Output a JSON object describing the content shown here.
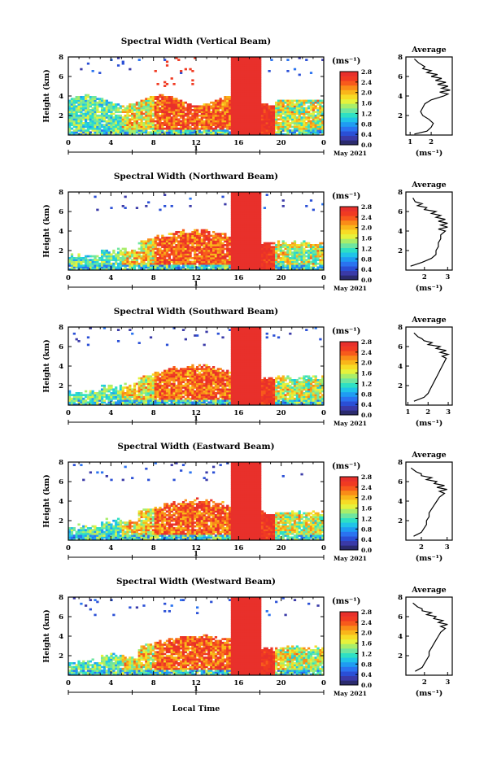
{
  "chart_data": {
    "type": "heatmap",
    "xlabel": "Local Time",
    "date_label": "May 2021",
    "colorbar": {
      "title": "(ms⁻¹)",
      "ticks": [
        "2.8",
        "2.4",
        "2.0",
        "1.6",
        "1.2",
        "0.8",
        "0.4",
        "0.0"
      ],
      "colors": [
        "#2b2b6e",
        "#3a3aa8",
        "#2a4fd6",
        "#2a73f0",
        "#1f9cf2",
        "#20c4e8",
        "#2ee0c4",
        "#6ee6a0",
        "#a8ee6a",
        "#e6f23c",
        "#f7dc25",
        "#f9b61a",
        "#f98c18",
        "#f75a1c",
        "#f03a22",
        "#e8302b"
      ],
      "range": [
        0,
        2.8
      ]
    },
    "x_ticks": [
      "0",
      "4",
      "8",
      "12",
      "16",
      "20",
      "0"
    ],
    "x_range": [
      0,
      24
    ],
    "day_marker": "1",
    "y_range": [
      0,
      8
    ],
    "panels": [
      {
        "title": "Spectral Width (Vertical Beam)",
        "ylabel": "Height (km)",
        "y_ticks": [
          "2",
          "4",
          "6",
          "8"
        ],
        "avg_title": "Average",
        "avg_unit": "(ms⁻¹)",
        "avg_x_ticks": [
          "1",
          "2"
        ],
        "avg_x_range": [
          0.8,
          3.0
        ],
        "avg_profile": {
          "height": [
            0.1,
            0.4,
            0.8,
            1.2,
            1.6,
            2.0,
            2.4,
            2.8,
            3.2,
            3.6,
            4.0,
            4.2,
            4.4,
            4.6,
            4.8,
            5.0,
            5.2,
            5.4,
            5.6,
            5.8,
            6.0,
            6.2,
            6.4,
            6.6,
            6.8,
            7.0,
            7.4,
            7.8
          ],
          "width": [
            1.2,
            1.8,
            2.0,
            2.1,
            1.9,
            1.6,
            1.5,
            1.6,
            1.7,
            2.0,
            2.6,
            2.8,
            2.4,
            2.9,
            2.5,
            2.8,
            2.3,
            2.7,
            2.2,
            2.5,
            2.0,
            2.3,
            1.8,
            2.0,
            1.6,
            1.7,
            1.4,
            1.2
          ]
        }
      },
      {
        "title": "Spectral Width (Northward Beam)",
        "ylabel": "Height (km)",
        "y_ticks": [
          "2",
          "4",
          "6",
          "8"
        ],
        "avg_title": "Average",
        "avg_unit": "(ms⁻¹)",
        "avg_x_ticks": [
          "2",
          "3"
        ],
        "avg_x_range": [
          1.2,
          3.2
        ],
        "avg_profile": {
          "height": [
            0.4,
            0.8,
            1.2,
            1.6,
            2.0,
            2.4,
            2.8,
            3.2,
            3.6,
            4.0,
            4.2,
            4.4,
            4.6,
            4.8,
            5.0,
            5.2,
            5.4,
            5.6,
            5.8,
            6.0,
            6.2,
            6.4,
            6.6,
            6.8,
            7.0,
            7.4
          ],
          "width": [
            1.4,
            1.9,
            2.3,
            2.5,
            2.5,
            2.6,
            2.6,
            2.7,
            2.7,
            2.9,
            2.6,
            3.0,
            2.7,
            3.0,
            2.6,
            2.9,
            2.5,
            2.7,
            2.3,
            2.5,
            2.0,
            2.1,
            1.7,
            1.9,
            1.6,
            1.5
          ]
        }
      },
      {
        "title": "Spectral Width (Southward Beam)",
        "ylabel": "Height (km)",
        "y_ticks": [
          "2",
          "4",
          "6",
          "8"
        ],
        "avg_title": "Average",
        "avg_unit": "(ms⁻¹)",
        "avg_x_ticks": [
          "1",
          "2",
          "3"
        ],
        "avg_x_range": [
          0.9,
          3.2
        ],
        "avg_profile": {
          "height": [
            0.4,
            0.8,
            1.2,
            1.6,
            2.0,
            2.4,
            2.8,
            3.2,
            3.6,
            4.0,
            4.4,
            4.8,
            5.0,
            5.2,
            5.4,
            5.6,
            5.8,
            6.0,
            6.2,
            6.4,
            6.6,
            6.8,
            7.0,
            7.4
          ],
          "width": [
            1.3,
            1.8,
            2.0,
            2.1,
            2.2,
            2.3,
            2.4,
            2.5,
            2.6,
            2.7,
            2.8,
            2.9,
            2.7,
            3.0,
            2.6,
            2.9,
            2.4,
            2.6,
            2.0,
            2.2,
            1.8,
            1.7,
            1.5,
            1.3
          ]
        }
      },
      {
        "title": "Spectral Width (Eastward Beam)",
        "ylabel": "Height (km)",
        "y_ticks": [
          "2",
          "4",
          "6",
          "8"
        ],
        "avg_title": "Average",
        "avg_unit": "(ms⁻¹)",
        "avg_x_ticks": [
          "2",
          "3"
        ],
        "avg_x_range": [
          1.4,
          3.2
        ],
        "avg_profile": {
          "height": [
            0.4,
            0.8,
            1.2,
            1.6,
            2.0,
            2.4,
            2.8,
            3.2,
            3.6,
            4.0,
            4.4,
            4.8,
            5.0,
            5.2,
            5.4,
            5.6,
            5.8,
            6.0,
            6.2,
            6.4,
            6.6,
            6.8,
            7.0,
            7.4
          ],
          "width": [
            1.7,
            2.0,
            2.1,
            2.2,
            2.2,
            2.3,
            2.3,
            2.4,
            2.5,
            2.6,
            2.7,
            2.9,
            2.7,
            3.0,
            2.6,
            2.9,
            2.5,
            2.6,
            2.2,
            2.4,
            2.0,
            2.0,
            1.8,
            1.6
          ]
        }
      },
      {
        "title": "Spectral Width (Westward Beam)",
        "ylabel": "Height (km)",
        "y_ticks": [
          "2",
          "4",
          "6",
          "8"
        ],
        "avg_title": "Average",
        "avg_unit": "(ms⁻¹)",
        "avg_x_ticks": [
          "2",
          "3"
        ],
        "avg_x_range": [
          1.2,
          3.2
        ],
        "avg_profile": {
          "height": [
            0.4,
            0.8,
            1.2,
            1.6,
            2.0,
            2.4,
            2.8,
            3.2,
            3.6,
            4.0,
            4.4,
            4.8,
            5.0,
            5.2,
            5.4,
            5.6,
            5.8,
            6.0,
            6.2,
            6.4,
            6.6,
            6.8,
            7.0,
            7.4
          ],
          "width": [
            1.6,
            1.9,
            2.0,
            2.1,
            2.2,
            2.2,
            2.3,
            2.4,
            2.5,
            2.6,
            2.7,
            2.9,
            2.7,
            3.0,
            2.6,
            2.8,
            2.4,
            2.5,
            2.1,
            2.3,
            1.9,
            1.9,
            1.7,
            1.5
          ]
        }
      }
    ]
  }
}
